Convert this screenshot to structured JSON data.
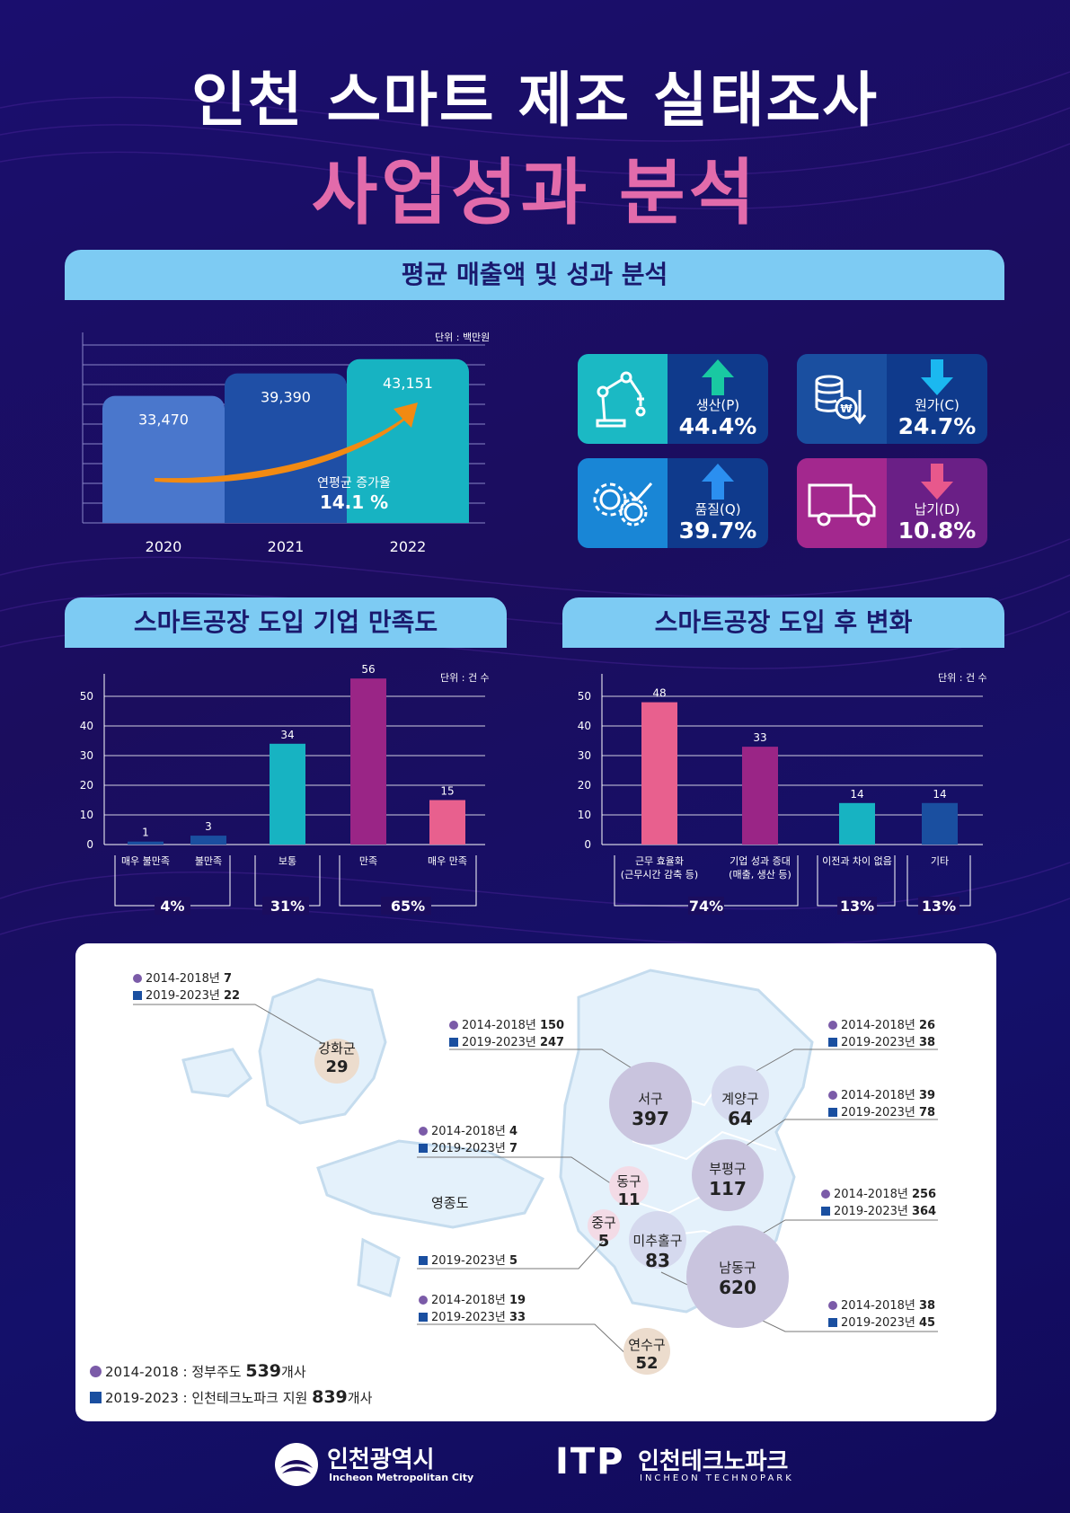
{
  "title": "인천 스마트 제조 실태조사",
  "subtitle": "사업성과 분석",
  "section1": {
    "banner": "평균 매출액 및 성과 분석",
    "unit": "단위 : 백만원",
    "growth_label": "연평균 증가율",
    "growth_value": "14.1 %"
  },
  "kpis": [
    {
      "label": "생산(P)",
      "value": "44.4%",
      "direction": "up",
      "icon": "robot-arm-icon",
      "color": "#1bb9c4",
      "arrow_color": "#19c9a2"
    },
    {
      "label": "원가(C)",
      "value": "24.7%",
      "direction": "down",
      "icon": "coins-icon",
      "color": "#1a4fa0",
      "arrow_color": "#1bb8f0"
    },
    {
      "label": "품질(Q)",
      "value": "39.7%",
      "direction": "up",
      "icon": "gear-check-icon",
      "color": "#1986d6",
      "arrow_color": "#2b8ff0"
    },
    {
      "label": "납기(D)",
      "value": "10.8%",
      "direction": "down",
      "icon": "truck-icon",
      "color": "#a3288e",
      "arrow_color": "#e8588c"
    }
  ],
  "section2": {
    "banner": "스마트공장 도입 기업 만족도",
    "unit": "단위 : 건 수",
    "groups": [
      {
        "label": "4%"
      },
      {
        "label": "31%"
      },
      {
        "label": "65%"
      }
    ]
  },
  "section3": {
    "banner": "스마트공장 도입 후 변화",
    "unit": "단위 : 건 수",
    "groups": [
      {
        "label": "74%"
      },
      {
        "label": "13%"
      },
      {
        "label": "13%"
      }
    ]
  },
  "chart_data": [
    {
      "type": "bar",
      "title": "",
      "categories": [
        "2020",
        "2021",
        "2022"
      ],
      "values": [
        33470,
        39390,
        43151
      ],
      "value_labels": [
        "33,470",
        "39,390",
        "43,151"
      ],
      "colors": [
        "#4a77cc",
        "#1f4fa6",
        "#17b3c2"
      ],
      "ylim": [
        0,
        45000
      ]
    },
    {
      "type": "bar",
      "title": "",
      "categories": [
        "매우  불만족",
        "불만족",
        "보통",
        "만족",
        "매우  만족"
      ],
      "values": [
        1,
        3,
        34,
        56,
        15
      ],
      "colors": [
        "#1a4fa0",
        "#1a4fa0",
        "#17b3c2",
        "#9a2586",
        "#e8608e"
      ],
      "yticks": [
        0,
        10,
        20,
        30,
        40,
        50
      ],
      "ylim": [
        0,
        58
      ]
    },
    {
      "type": "bar",
      "title": "",
      "categories": [
        [
          "근무 효율화",
          "(근무시간 감축 등)"
        ],
        [
          "기업 성과 증대",
          "(매출, 생산 등)"
        ],
        [
          "이전과 차이 없음"
        ],
        [
          "기타"
        ]
      ],
      "values": [
        48,
        33,
        14,
        14
      ],
      "colors": [
        "#e8608e",
        "#9a2586",
        "#17b3c2",
        "#1a4fa0"
      ],
      "yticks": [
        0,
        10,
        20,
        30,
        40,
        50
      ],
      "ylim": [
        0,
        58
      ]
    }
  ],
  "map": {
    "regions": [
      {
        "name": "강화군",
        "total": "29",
        "p1": "7",
        "p2": "22"
      },
      {
        "name": "서구",
        "total": "397",
        "p1": "150",
        "p2": "247"
      },
      {
        "name": "계양구",
        "total": "64",
        "p1": "26",
        "p2": "38"
      },
      {
        "name": "부평구",
        "total": "117",
        "p1": "39",
        "p2": "78"
      },
      {
        "name": "동구",
        "total": "11",
        "p1": "4",
        "p2": "7"
      },
      {
        "name": "중구",
        "total": "5",
        "p2": "5"
      },
      {
        "name": "미추홀구",
        "total": "83",
        "p1": "38",
        "p2": "45"
      },
      {
        "name": "남동구",
        "total": "620",
        "p1": "256",
        "p2": "364"
      },
      {
        "name": "연수구",
        "total": "52",
        "p1": "19",
        "p2": "33"
      }
    ],
    "island": "영종도",
    "period1": "2014-2018년",
    "period2": "2019-2023년",
    "summary1_text": "2014-2018 : 정부주도",
    "summary1_num": "539",
    "summary2_text": "2019-2023 : 인천테크노파크 지원",
    "summary2_num": "839",
    "summary_suffix": "개사"
  },
  "footer": {
    "logo1_kr": "인천광역시",
    "logo1_en": "Incheon Metropolitan City",
    "logo2_mark": "ITP",
    "logo2_kr": "인천테크노파크",
    "logo2_en": "INCHEON TECHNOPARK"
  }
}
